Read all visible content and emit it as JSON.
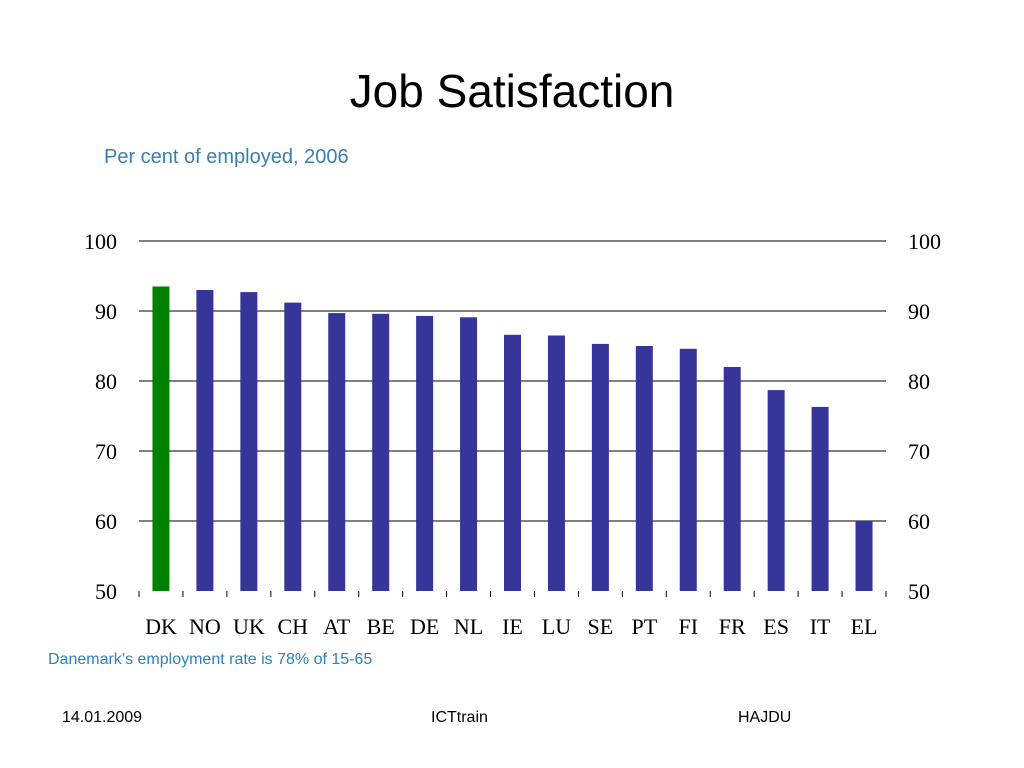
{
  "slide": {
    "title": "Job Satisfaction",
    "subtitle": "Per cent of employed, 2006",
    "note": "Danemark’s employment rate is 78% of 15-65",
    "footer": {
      "date": "14.01.2009",
      "center": "ICTtrain",
      "right": "HAJDU"
    }
  },
  "colors": {
    "highlight_bar": "#008000",
    "bar": "#363599",
    "subtitle": "#3a7fb0"
  },
  "chart_data": {
    "type": "bar",
    "title": "Job Satisfaction",
    "subtitle": "Per cent of employed, 2006",
    "categories": [
      "DK",
      "NO",
      "UK",
      "CH",
      "AT",
      "BE",
      "DE",
      "NL",
      "IE",
      "LU",
      "SE",
      "PT",
      "FI",
      "FR",
      "ES",
      "IT",
      "EL"
    ],
    "values": [
      93.5,
      93.0,
      92.7,
      91.2,
      89.7,
      89.6,
      89.3,
      89.1,
      86.6,
      86.5,
      85.3,
      85.0,
      84.6,
      82.0,
      78.7,
      76.3,
      60.0
    ],
    "highlight_category": "DK",
    "ylim": [
      50,
      100
    ],
    "yticks": [
      50,
      60,
      70,
      80,
      90,
      100
    ],
    "secondary_y_axis": true,
    "grid": true,
    "legend": "none"
  }
}
